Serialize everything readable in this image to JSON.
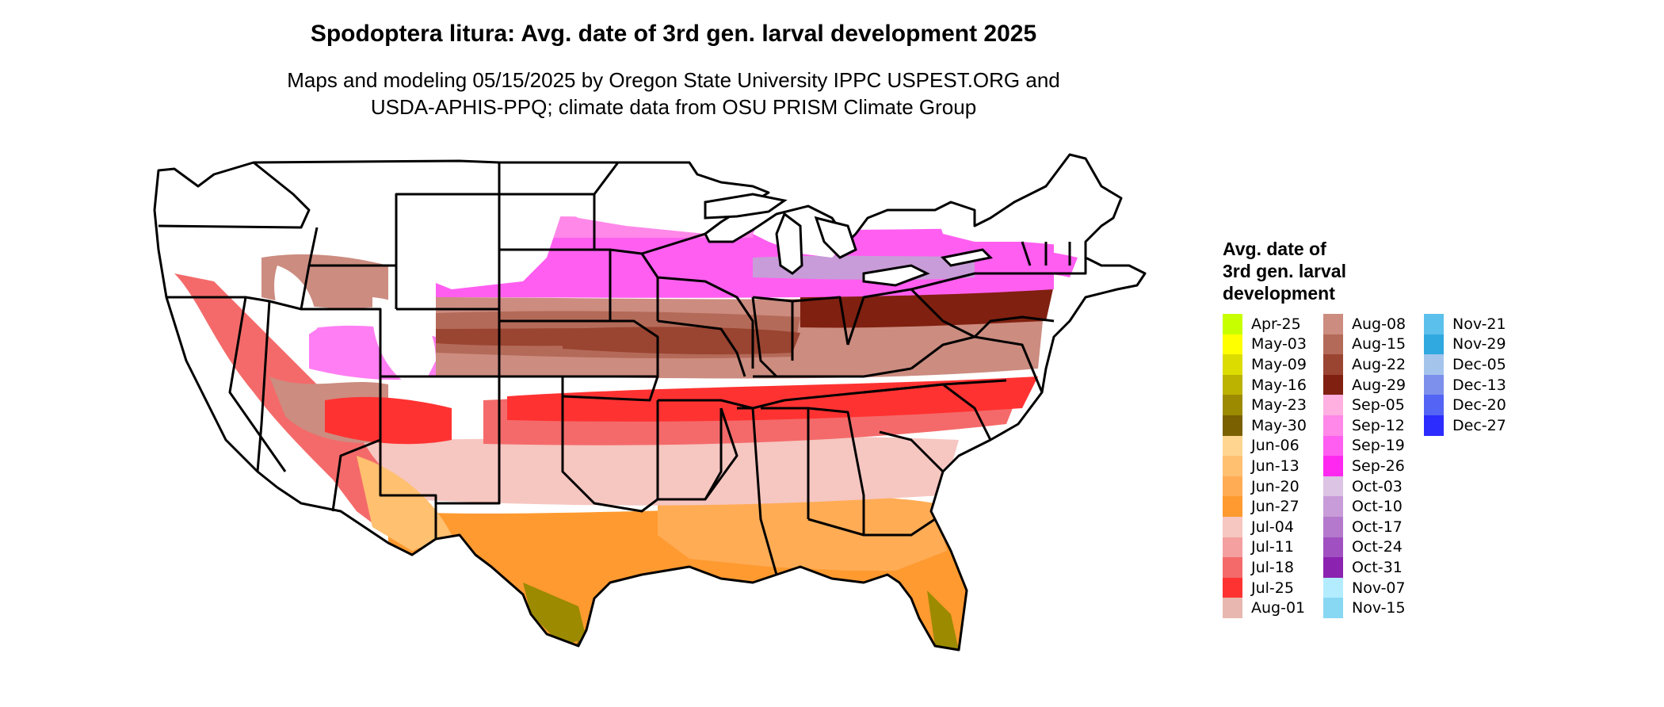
{
  "title": "Spodoptera litura: Avg. date of 3rd gen. larval development 2025",
  "subtitle_line1": "Maps and modeling 05/15/2025 by Oregon State University IPPC USPEST.ORG and",
  "subtitle_line2": "USDA-APHIS-PPQ; climate data from OSU PRISM Climate Group",
  "legend": {
    "title_lines": [
      "Avg. date of",
      "3rd gen. larval",
      "development"
    ],
    "columns": [
      [
        {
          "label": "Apr-25",
          "color": "#c8ff00"
        },
        {
          "label": "May-03",
          "color": "#ffff00"
        },
        {
          "label": "May-09",
          "color": "#dcdc00"
        },
        {
          "label": "May-16",
          "color": "#bcb200"
        },
        {
          "label": "May-23",
          "color": "#9c8a00"
        },
        {
          "label": "May-30",
          "color": "#7a6000"
        },
        {
          "label": "Jun-06",
          "color": "#ffd590"
        },
        {
          "label": "Jun-13",
          "color": "#ffc070"
        },
        {
          "label": "Jun-20",
          "color": "#ffac55"
        },
        {
          "label": "Jun-27",
          "color": "#ff9a30"
        },
        {
          "label": "Jul-04",
          "color": "#f6c6c0"
        },
        {
          "label": "Jul-11",
          "color": "#f4a0a0"
        },
        {
          "label": "Jul-18",
          "color": "#f46a6a"
        },
        {
          "label": "Jul-25",
          "color": "#ff3232"
        },
        {
          "label": "Aug-01",
          "color": "#e8b8b0"
        }
      ],
      [
        {
          "label": "Aug-08",
          "color": "#cc8c80"
        },
        {
          "label": "Aug-15",
          "color": "#b46a58"
        },
        {
          "label": "Aug-22",
          "color": "#9a4432"
        },
        {
          "label": "Aug-29",
          "color": "#802010"
        },
        {
          "label": "Sep-05",
          "color": "#ffb0e0"
        },
        {
          "label": "Sep-12",
          "color": "#ff88e8"
        },
        {
          "label": "Sep-19",
          "color": "#ff5ef0"
        },
        {
          "label": "Sep-26",
          "color": "#ff28f0"
        },
        {
          "label": "Oct-03",
          "color": "#dcc4e4"
        },
        {
          "label": "Oct-10",
          "color": "#c89cd8"
        },
        {
          "label": "Oct-17",
          "color": "#b478cc"
        },
        {
          "label": "Oct-24",
          "color": "#a050c0"
        },
        {
          "label": "Oct-31",
          "color": "#8c22b0"
        },
        {
          "label": "Nov-07",
          "color": "#b4ecff"
        },
        {
          "label": "Nov-15",
          "color": "#88d8f4"
        }
      ],
      [
        {
          "label": "Nov-21",
          "color": "#5cc0ec"
        },
        {
          "label": "Nov-29",
          "color": "#30a8e0"
        },
        {
          "label": "Dec-05",
          "color": "#a4c4ec"
        },
        {
          "label": "Dec-13",
          "color": "#7c90ec"
        },
        {
          "label": "Dec-20",
          "color": "#5464f4"
        },
        {
          "label": "Dec-27",
          "color": "#2c2cff"
        }
      ]
    ]
  }
}
